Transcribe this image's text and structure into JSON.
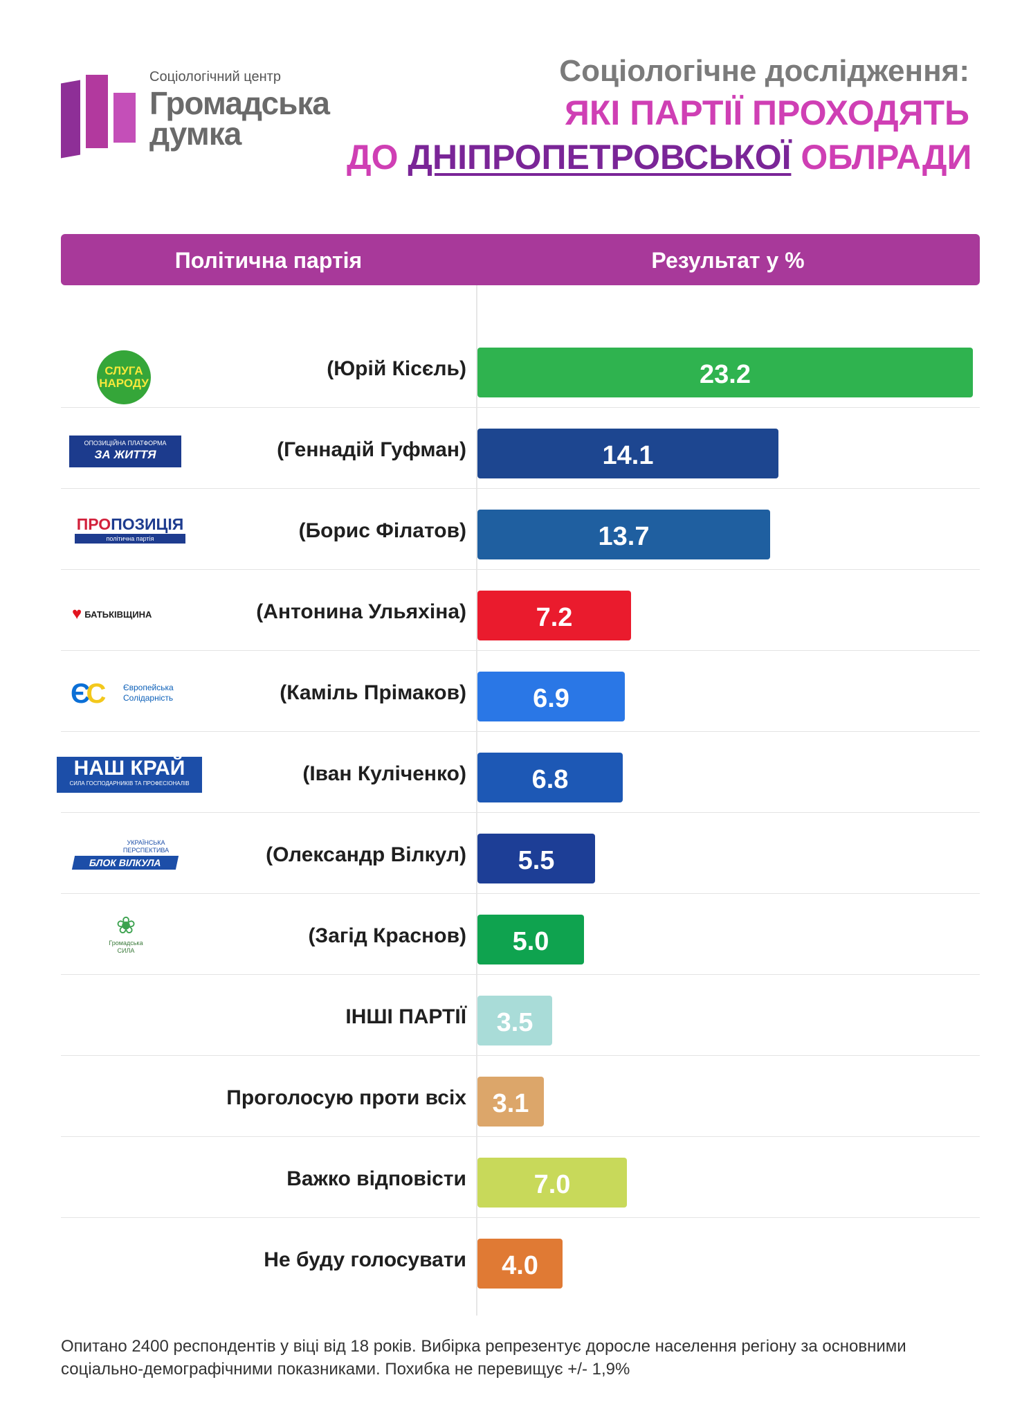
{
  "header": {
    "logo": {
      "caption": "Соціологічний центр",
      "line1": "Громадська",
      "line2": "думка",
      "colors": [
        "#8e2f97",
        "#b2399e",
        "#c44fb8"
      ]
    },
    "title_line1": "Соціологічне дослідження:",
    "title_line2": "ЯКІ ПАРТІЇ ПРОХОДЯТЬ",
    "title_line3_pre": "ДО ",
    "title_line3_em": "ДНІПРОПЕТРОВСЬКОЇ",
    "title_line3_post": " ОБЛРАДИ"
  },
  "table_header": {
    "party": "Політична партія",
    "result": "Результат у %",
    "color": "#a8399a"
  },
  "rows": [
    {
      "label": "(Юрій Кісєль)",
      "logo_text": [
        "СЛУГА",
        "НАРОДУ"
      ],
      "color": "#2fb34f"
    },
    {
      "label": "(Геннадій Гуфман)",
      "logo_text": [
        "ОПОЗИЦІЙНА ПЛАТФОРМА",
        "ЗА ЖИТТЯ"
      ],
      "color": "#1d4690"
    },
    {
      "label": "(Борис Філатов)",
      "logo_text": [
        "ПРО",
        "ПОЗИЦІЯ",
        "політична партія"
      ],
      "color": "#1f5fa0"
    },
    {
      "label": "(Антонина Ульяхіна)",
      "logo_text": [
        "БАТЬКІВЩИНА"
      ],
      "color": "#ea1b2d"
    },
    {
      "label": "(Каміль Прімаков)",
      "logo_text": [
        "Європейська",
        "Солідарність"
      ],
      "color": "#2a77e6"
    },
    {
      "label": "(Іван Куліченко)",
      "logo_text": [
        "НАШ КРАЙ",
        "СИЛА ГОСПОДАРНИКІВ ТА ПРОФЕСІОНАЛІВ"
      ],
      "color": "#1d58b5"
    },
    {
      "label": "(Олександр Вілкул)",
      "logo_text": [
        "УКРАЇНСЬКА ПЕРСПЕКТИВА",
        "БЛОК ВІЛКУЛА"
      ],
      "color": "#1d3e96"
    },
    {
      "label": "(Загід Краснов)",
      "logo_text": [
        "Громадська",
        "СИЛА"
      ],
      "color": "#0fa34f"
    },
    {
      "label": "ІНШІ ПАРТІЇ",
      "color": "#a9dcd8"
    },
    {
      "label": "Проголосую проти всіх",
      "color": "#dca66a"
    },
    {
      "label": "Важко відповісти",
      "color": "#c8d95a"
    },
    {
      "label": "Не буду голосувати",
      "color": "#e07a34"
    }
  ],
  "chart_data": {
    "type": "bar",
    "orientation": "horizontal",
    "title": "Соціологічне дослідження: ЯКІ ПАРТІЇ ПРОХОДЯТЬ ДО ДНІПРОПЕТРОВСЬКОЇ ОБЛРАДИ",
    "categories": [
      "(Юрій Кісєль)",
      "(Геннадій Гуфман)",
      "(Борис Філатов)",
      "(Антонина Ульяхіна)",
      "(Каміль Прімаков)",
      "(Іван Куліченко)",
      "(Олександр Вілкул)",
      "(Загід Краснов)",
      "ІНШІ ПАРТІЇ",
      "Проголосую проти всіх",
      "Важко відповісти",
      "Не буду голосувати"
    ],
    "values": [
      23.2,
      14.1,
      13.7,
      7.2,
      6.9,
      6.8,
      5.5,
      5.0,
      3.5,
      3.1,
      7.0,
      4.0
    ],
    "value_labels": [
      "23.2",
      "14.1",
      "13.7",
      "7.2",
      "6.9",
      "6.8",
      "5.5",
      "5.0",
      "3.5",
      "3.1",
      "7.0",
      "4.0"
    ],
    "xlabel": "Результат у %",
    "ylabel": "Політична партія",
    "xlim": [
      0,
      23.2
    ],
    "grid": false,
    "legend": "none"
  },
  "footnote": "Опитано 2400 респондентів у віці від 18 років. Вибірка репрезентує доросле населення регіону за основними соціально-демографічними показниками. Похибка не перевищує +/- 1,9%"
}
